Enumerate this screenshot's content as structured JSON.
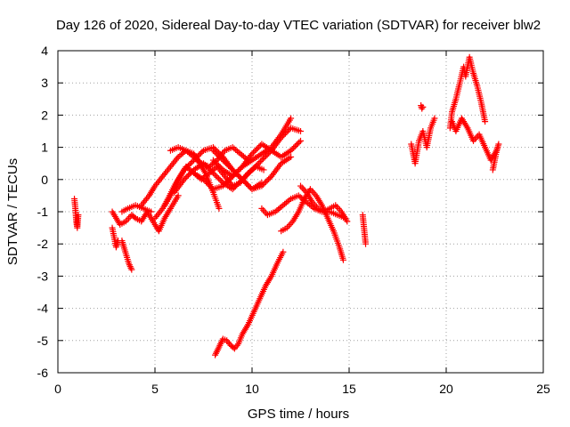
{
  "chart_data": {
    "type": "scatter",
    "title": "Day 126 of 2020, Sidereal Day-to-day VTEC variation (SDTVAR) for receiver blw2",
    "xlabel": "GPS time / hours",
    "ylabel": "SDTVAR / TECUs",
    "xlim": [
      0,
      25
    ],
    "ylim": [
      -6,
      4
    ],
    "xticks": [
      "0",
      "5",
      "10",
      "15",
      "20",
      "25"
    ],
    "yticks": [
      "-6",
      "-5",
      "-4",
      "-3",
      "-2",
      "-1",
      "0",
      "1",
      "2",
      "3",
      "4"
    ],
    "grid": true,
    "marker": "+",
    "color": "#ff0000",
    "segments": [
      {
        "x": [
          0.85,
          0.9,
          0.95,
          1.0,
          1.05
        ],
        "y": [
          -0.6,
          -0.9,
          -1.3,
          -1.5,
          -1.1
        ]
      },
      {
        "x": [
          2.8,
          3.0,
          3.2,
          3.5,
          3.8,
          4.0,
          4.3,
          4.6,
          5.0,
          5.2,
          5.5,
          5.8,
          6.2
        ],
        "y": [
          -1.0,
          -1.2,
          -1.4,
          -1.3,
          -1.1,
          -1.2,
          -1.3,
          -1.0,
          -1.4,
          -1.6,
          -1.2,
          -0.9,
          -0.5
        ]
      },
      {
        "x": [
          2.8,
          2.9,
          3.0,
          3.1
        ],
        "y": [
          -1.5,
          -1.8,
          -2.1,
          -1.9
        ]
      },
      {
        "x": [
          3.3,
          3.5,
          3.65,
          3.8
        ],
        "y": [
          -1.9,
          -2.3,
          -2.6,
          -2.8
        ]
      },
      {
        "x": [
          3.3,
          3.6,
          4.0,
          4.4,
          4.8
        ],
        "y": [
          -1.0,
          -0.9,
          -0.8,
          -0.9,
          -1.0
        ]
      },
      {
        "x": [
          4.3,
          4.7,
          5.0,
          5.4,
          5.8,
          6.2,
          6.6,
          7.0,
          7.3,
          7.6,
          8.0,
          8.3
        ],
        "y": [
          -0.8,
          -0.5,
          -0.2,
          0.1,
          0.4,
          0.7,
          0.9,
          0.8,
          0.5,
          0.2,
          -0.4,
          -0.9
        ]
      },
      {
        "x": [
          5.0,
          5.4,
          5.8,
          6.2,
          6.6,
          7.0,
          7.4,
          7.8,
          8.2,
          8.6,
          9.0,
          9.4,
          9.8,
          10.2,
          10.6
        ],
        "y": [
          -1.2,
          -0.9,
          -0.5,
          0.0,
          0.4,
          0.2,
          0.0,
          0.2,
          0.4,
          0.1,
          -0.2,
          -0.1,
          0.2,
          0.4,
          0.3
        ]
      },
      {
        "x": [
          5.5,
          6.0,
          6.5,
          7.0,
          7.5,
          8.0,
          8.5,
          9.0,
          9.5,
          10.0,
          10.5
        ],
        "y": [
          -0.8,
          -0.2,
          0.3,
          0.6,
          0.9,
          1.0,
          0.7,
          0.3,
          0.0,
          -0.3,
          -0.1
        ]
      },
      {
        "x": [
          5.8,
          6.2,
          6.6,
          7.0,
          7.4,
          7.8,
          8.2,
          8.6,
          9.0,
          9.4,
          9.8
        ],
        "y": [
          0.9,
          1.0,
          0.9,
          0.7,
          0.5,
          0.4,
          0.6,
          0.9,
          1.0,
          0.8,
          0.6
        ]
      },
      {
        "x": [
          6.0,
          6.5,
          7.0,
          7.5,
          8.0,
          8.5,
          9.0,
          9.5,
          10.0,
          10.5,
          11.0,
          11.5,
          12.0,
          12.5
        ],
        "y": [
          -0.4,
          0.0,
          0.3,
          0.5,
          0.2,
          -0.1,
          -0.3,
          0.0,
          0.3,
          0.6,
          0.9,
          1.3,
          1.6,
          1.5
        ]
      },
      {
        "x": [
          7.0,
          7.5,
          8.0,
          8.5,
          9.0,
          9.5,
          10.0,
          10.5,
          11.0,
          11.5,
          12.0
        ],
        "y": [
          0.2,
          0.0,
          -0.3,
          -0.2,
          0.1,
          0.4,
          0.6,
          0.8,
          1.0,
          1.4,
          1.9
        ]
      },
      {
        "x": [
          8.0,
          8.5,
          9.0,
          9.5,
          10.0,
          10.5,
          11.0,
          11.5,
          12.0,
          12.5
        ],
        "y": [
          0.6,
          0.3,
          0.1,
          0.4,
          0.8,
          1.1,
          0.9,
          0.7,
          0.9,
          1.2
        ]
      },
      {
        "x": [
          8.0,
          8.5,
          9.0,
          9.5,
          10.0,
          10.5,
          11.0,
          11.5,
          12.0
        ],
        "y": [
          0.9,
          0.6,
          0.3,
          0.0,
          -0.3,
          -0.2,
          0.1,
          0.5,
          0.7
        ]
      },
      {
        "x": [
          8.1,
          8.3,
          8.5,
          8.7,
          8.9,
          9.1,
          9.3,
          9.5,
          9.8,
          10.1,
          10.4,
          10.7,
          11.0,
          11.3,
          11.6
        ],
        "y": [
          -5.45,
          -5.2,
          -4.95,
          -5.0,
          -5.15,
          -5.25,
          -5.1,
          -4.8,
          -4.5,
          -4.1,
          -3.7,
          -3.3,
          -3.0,
          -2.6,
          -2.25
        ]
      },
      {
        "x": [
          10.5,
          10.8,
          11.2,
          11.6,
          12.0,
          12.4,
          12.8,
          13.2,
          13.6,
          14.0,
          14.4,
          14.8
        ],
        "y": [
          -0.9,
          -1.1,
          -1.0,
          -0.8,
          -0.6,
          -0.5,
          -0.7,
          -0.9,
          -1.0,
          -1.0,
          -1.1,
          -1.2
        ]
      },
      {
        "x": [
          11.5,
          11.8,
          12.1,
          12.4,
          12.7,
          13.0,
          13.3,
          13.6,
          13.9,
          14.2,
          14.5,
          14.7
        ],
        "y": [
          -1.6,
          -1.5,
          -1.3,
          -1.0,
          -0.6,
          -0.3,
          -0.5,
          -0.8,
          -1.2,
          -1.6,
          -2.1,
          -2.5
        ]
      },
      {
        "x": [
          12.5,
          12.8,
          13.1,
          13.4,
          13.7,
          14.0,
          14.3,
          14.6,
          14.9
        ],
        "y": [
          -0.2,
          -0.4,
          -0.7,
          -0.9,
          -1.0,
          -0.9,
          -0.8,
          -1.0,
          -1.3
        ]
      },
      {
        "x": [
          15.7,
          15.75,
          15.8,
          15.85
        ],
        "y": [
          -1.1,
          -1.4,
          -1.7,
          -2.0
        ]
      },
      {
        "x": [
          18.2,
          18.3,
          18.4,
          18.6,
          18.8,
          19.0,
          19.2,
          19.4
        ],
        "y": [
          1.1,
          0.8,
          0.5,
          1.2,
          1.5,
          1.0,
          1.6,
          1.9
        ]
      },
      {
        "x": [
          18.7,
          18.75,
          18.8
        ],
        "y": [
          2.3,
          2.2,
          2.25
        ]
      },
      {
        "x": [
          20.2,
          20.3,
          20.5,
          20.7,
          20.9,
          21.0,
          21.2,
          21.4,
          21.6,
          21.8,
          22.0
        ],
        "y": [
          1.6,
          2.1,
          2.5,
          3.0,
          3.5,
          3.2,
          3.8,
          3.3,
          2.9,
          2.4,
          1.8
        ]
      },
      {
        "x": [
          20.3,
          20.5,
          20.8,
          21.1,
          21.4,
          21.7,
          22.0,
          22.3,
          22.6
        ],
        "y": [
          1.8,
          1.5,
          1.9,
          1.6,
          1.2,
          1.4,
          1.0,
          0.6,
          0.9
        ]
      },
      {
        "x": [
          22.4,
          22.5,
          22.6,
          22.7
        ],
        "y": [
          0.3,
          0.6,
          0.9,
          1.1
        ]
      }
    ]
  }
}
